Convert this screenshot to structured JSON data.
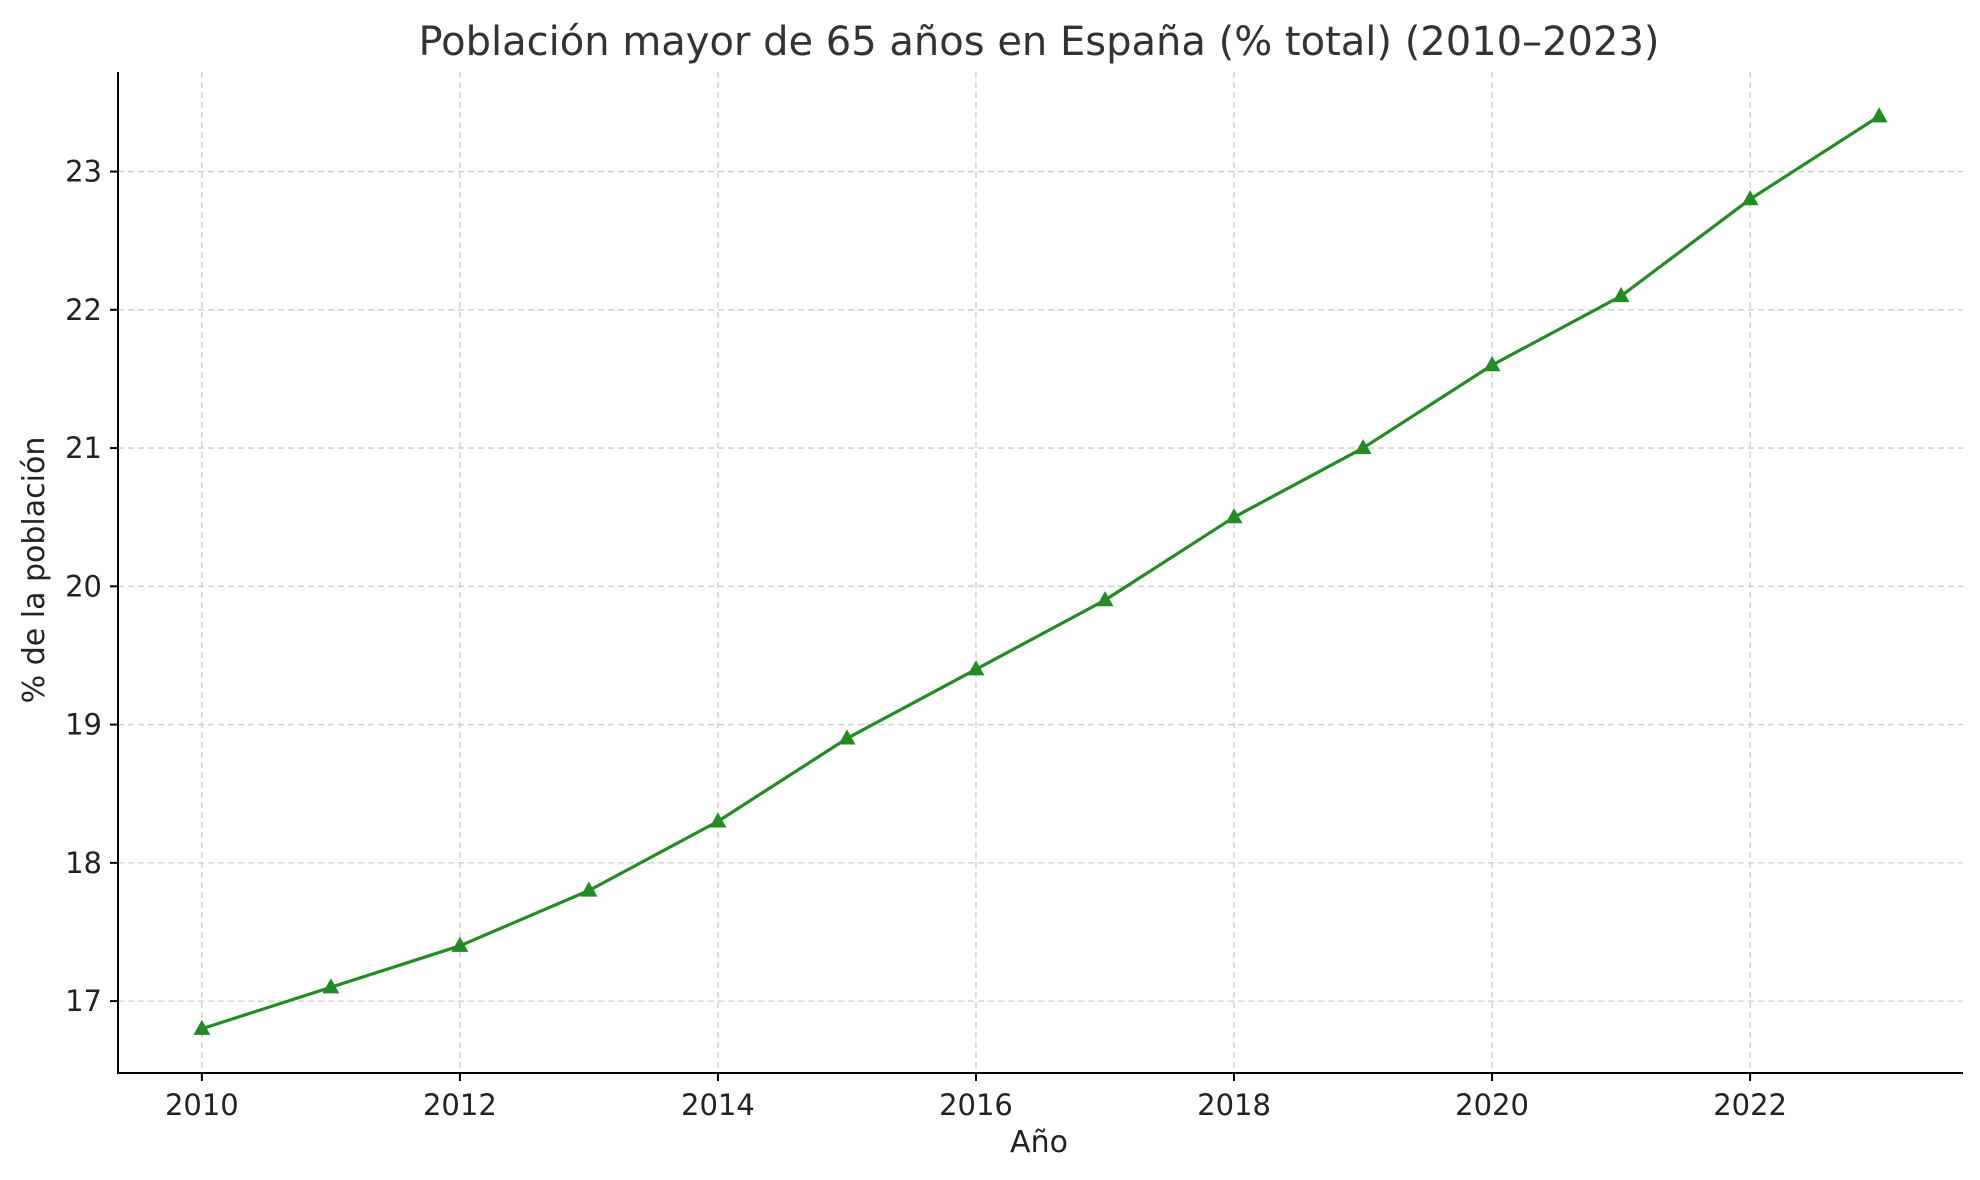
{
  "chart_data": {
    "type": "line",
    "title": "Población mayor de 65 años en España (% total) (2010–2023)",
    "xlabel": "Año",
    "ylabel": "% de la población",
    "x": [
      2010,
      2011,
      2012,
      2013,
      2014,
      2015,
      2016,
      2017,
      2018,
      2019,
      2020,
      2021,
      2022,
      2023
    ],
    "series": [
      {
        "values": [
          16.8,
          17.1,
          17.4,
          17.8,
          18.3,
          18.9,
          19.4,
          19.9,
          20.5,
          21.0,
          21.6,
          22.1,
          22.8,
          23.4
        ],
        "color": "#228b22",
        "marker": "triangle"
      }
    ],
    "xticks": [
      2010,
      2012,
      2014,
      2016,
      2018,
      2020,
      2022
    ],
    "xtick_labels": [
      "2010",
      "2012",
      "2014",
      "2016",
      "2018",
      "2020",
      "2022"
    ],
    "yticks": [
      17,
      18,
      19,
      20,
      21,
      22,
      23
    ],
    "ytick_labels": [
      "17",
      "18",
      "19",
      "20",
      "21",
      "22",
      "23"
    ],
    "xlim": [
      2009.35,
      2023.65
    ],
    "ylim": [
      16.48,
      23.72
    ],
    "grid": true,
    "legend": "none"
  }
}
